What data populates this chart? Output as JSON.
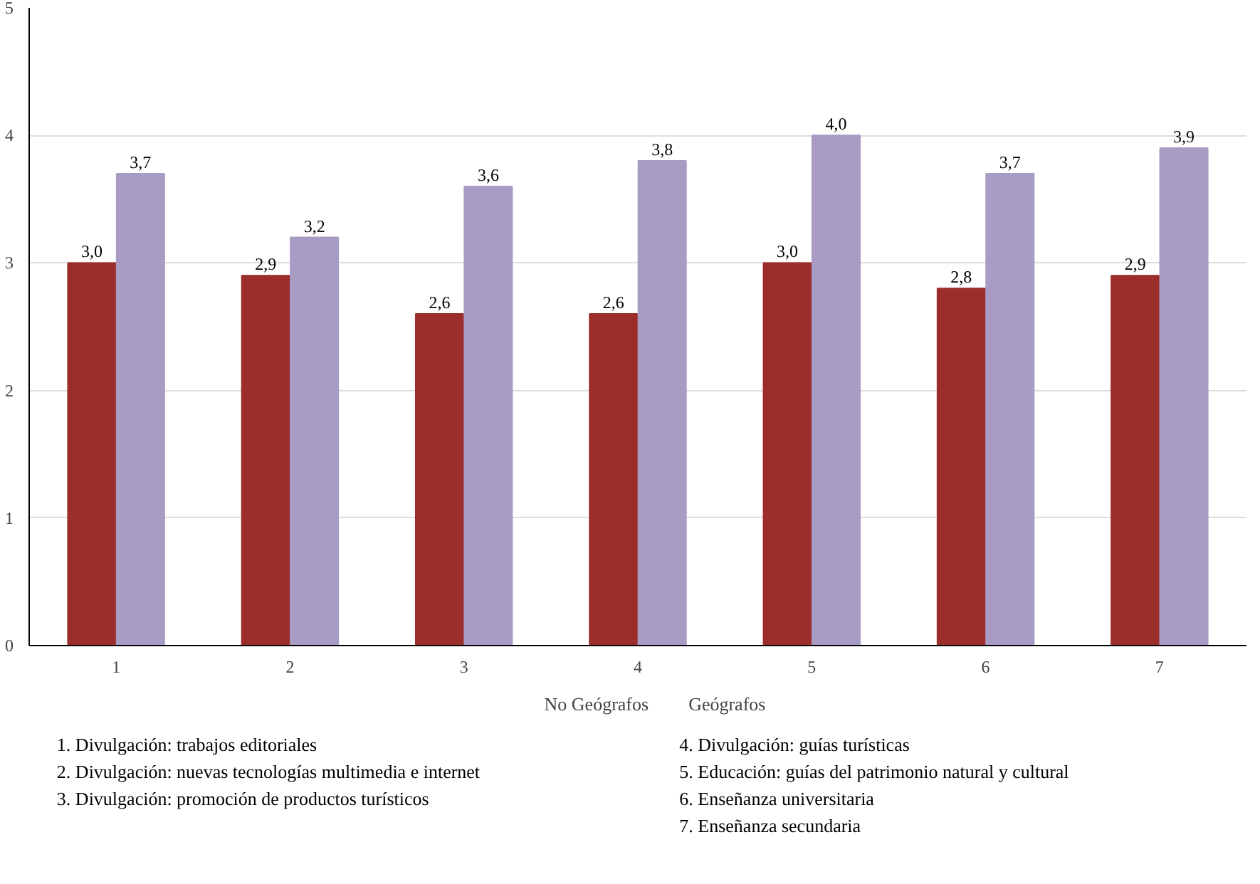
{
  "chart_data": {
    "type": "bar",
    "categories": [
      "1",
      "2",
      "3",
      "4",
      "5",
      "6",
      "7"
    ],
    "series": [
      {
        "name": "No Geógrafos",
        "color": "#9b2d2a",
        "values": [
          3.0,
          2.9,
          2.6,
          2.6,
          3.0,
          2.8,
          2.9
        ],
        "value_labels": [
          "3,0",
          "2,9",
          "2,6",
          "2,6",
          "3,0",
          "2,8",
          "2,9"
        ]
      },
      {
        "name": "Geógrafos",
        "color": "#a89bc4",
        "values": [
          3.7,
          3.2,
          3.6,
          3.8,
          4.0,
          3.7,
          3.9
        ],
        "value_labels": [
          "3,7",
          "3,2",
          "3,6",
          "3,8",
          "4,0",
          "3,7",
          "3,9"
        ]
      }
    ],
    "ylim": [
      0,
      5
    ],
    "yticks": [
      0,
      1,
      2,
      3,
      4,
      5
    ],
    "grid": "y",
    "legend": "bottom",
    "annotations": [
      "1. Divulgación: trabajos editoriales",
      "2. Divulgación: nuevas tecnologías multimedia e internet",
      "3. Divulgación: promoción de productos turísticos",
      "4. Divulgación: guías turísticas",
      "5. Educación: guías del patrimonio natural y cultural",
      "6. Enseñanza universitaria",
      "7. Enseñanza secundaria"
    ]
  }
}
